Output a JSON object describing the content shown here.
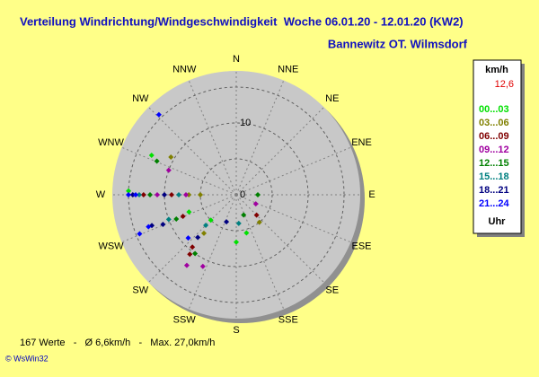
{
  "chart_data": {
    "type": "polar-scatter",
    "title": "Verteilung Windrichtung/Windgeschwindigkeit  Woche 06.01.20 - 12.01.20 (KW2)",
    "subtitle": "Bannewitz OT. Wilmsdorf",
    "directions": [
      "N",
      "NNE",
      "NE",
      "ENE",
      "E",
      "ESE",
      "SE",
      "SSE",
      "S",
      "SSW",
      "SW",
      "WSW",
      "W",
      "WNW",
      "NW",
      "NNW"
    ],
    "rlim": [
      0,
      17.25
    ],
    "rticks": [
      0,
      10
    ],
    "rgrid": [
      5,
      10,
      15
    ],
    "legend_title": "km/h",
    "legend_value": "12,6",
    "legend_unit": "Uhr",
    "series": [
      {
        "name": "00...03",
        "color": "#00e000",
        "direction": [
          295,
          272,
          180,
          165,
          225,
          250
        ],
        "speed": [
          13,
          15,
          6.6,
          5.5,
          5,
          7
        ]
      },
      {
        "name": "03...06",
        "color": "#808000",
        "direction": [
          300,
          270,
          220,
          270,
          140
        ],
        "speed": [
          10.5,
          6.6,
          7,
          5,
          5
        ]
      },
      {
        "name": "06...09",
        "color": "#800000",
        "direction": [
          270,
          270,
          248,
          218,
          220,
          135
        ],
        "speed": [
          12.9,
          9,
          8,
          10.5,
          9.5,
          4
        ]
      },
      {
        "name": "09...12",
        "color": "#a000a0",
        "direction": [
          270,
          270,
          290,
          215,
          205,
          115
        ],
        "speed": [
          11,
          7,
          10,
          12,
          11,
          3
        ]
      },
      {
        "name": "12...15",
        "color": "#008000",
        "direction": [
          270,
          293,
          248,
          215,
          160,
          90
        ],
        "speed": [
          12,
          12,
          9,
          10,
          3,
          3
        ]
      },
      {
        "name": "15...18",
        "color": "#008080",
        "direction": [
          270,
          250,
          270,
          225,
          175
        ],
        "speed": [
          13.5,
          10,
          8,
          6,
          4
        ]
      },
      {
        "name": "18...21",
        "color": "#000080",
        "direction": [
          270,
          270,
          248,
          250,
          222,
          200
        ],
        "speed": [
          14.4,
          10,
          11,
          12.5,
          8,
          4
        ]
      },
      {
        "name": "21...24",
        "color": "#0000ff",
        "direction": [
          270,
          248,
          316,
          270,
          250,
          228
        ],
        "speed": [
          15,
          14.5,
          15.5,
          14,
          13,
          9
        ]
      }
    ],
    "footer": "167 Werte   -   Ø 6,6km/h   -   Max. 27,0km/h",
    "credit": "© WsWin32"
  }
}
